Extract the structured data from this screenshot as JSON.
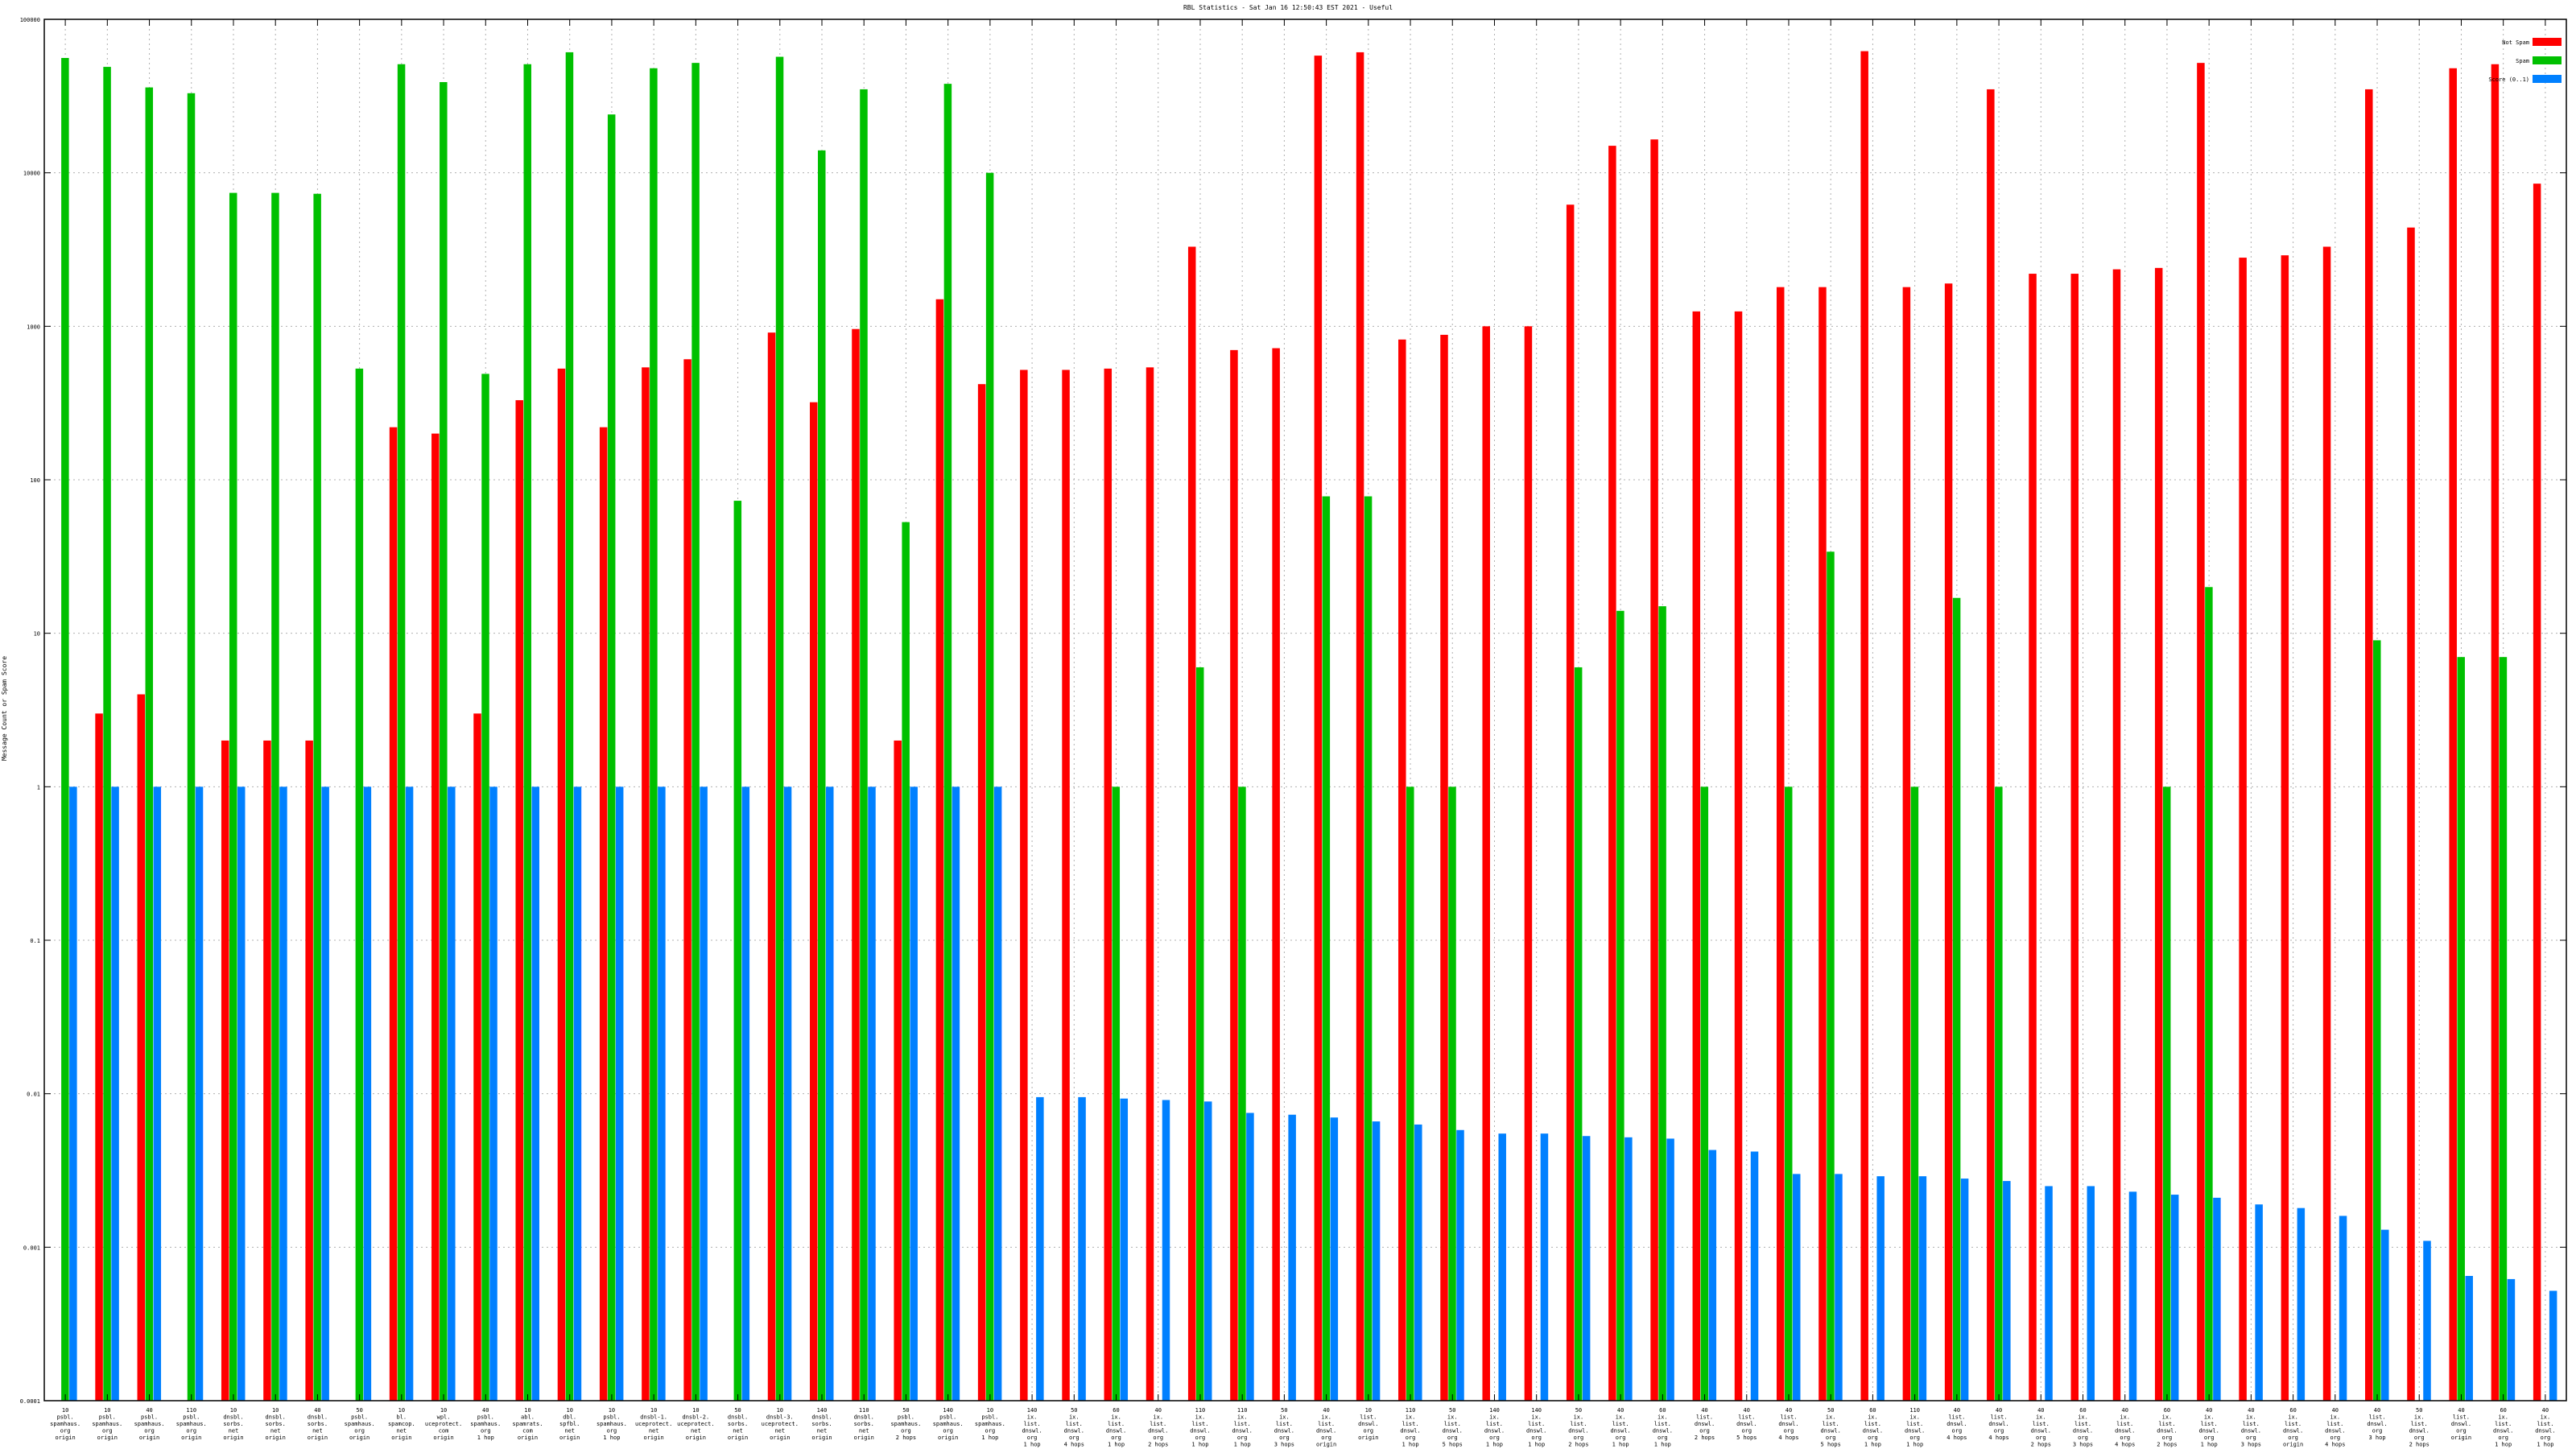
{
  "chart_data": {
    "type": "bar",
    "title": "RBL Statistics - Sat Jan 16 12:50:43 EST 2021 - Useful",
    "xlabel": "",
    "ylabel": "Message Count or Spam Score",
    "yscale": "log",
    "ylim": [
      0.0001,
      100000
    ],
    "yticks": [
      100000,
      10000,
      1000,
      100,
      10,
      1,
      0.1,
      0.01,
      0.001,
      0.0001
    ],
    "ytick_labels": [
      "100000",
      "10000",
      "1000",
      "100",
      "10",
      "1",
      "0.1",
      "0.01",
      "0.001",
      "0.0001"
    ],
    "grid": true,
    "legend_position": "top-right",
    "categories": [
      "10\npsbl.\nspamhaus.\norg\norigin",
      "10\npsbl.\nspamhaus.\norg\norigin",
      "40\npsbl.\nspamhaus.\norg\norigin",
      "110\npsbl.\nspamhaus.\norg\norigin",
      "10\ndnsbl.\nsorbs.\nnet\norigin",
      "10\ndnsbl.\nsorbs.\nnet\norigin",
      "40\ndnsbl.\nsorbs.\nnet\norigin",
      "50\npsbl.\nspamhaus.\norg\norigin",
      "10\nbl.\nspamcop.\nnet\norigin",
      "10\nwpl.\nuceprotect.\ncom\norigin",
      "40\npsbl.\nspamhaus.\norg\n1 hop",
      "10\nabl.\nspamrats.\ncom\norigin",
      "10\ndbl.\nspfbl.\nnet\norigin",
      "10\npsbl.\nspamhaus.\norg\n1 hop",
      "10\ndnsbl-1.\nuceprotect.\nnet\norigin",
      "10\ndnsbl-2.\nuceprotect.\nnet\norigin",
      "50\ndnsbl.\nsorbs.\nnet\norigin",
      "10\ndnsbl-3.\nuceprotect.\nnet\norigin",
      "140\ndnsbl.\nsorbs.\nnet\norigin",
      "110\ndnsbl.\nsorbs.\nnet\norigin",
      "50\npsbl.\nspamhaus.\norg\n2 hops",
      "140\npsbl.\nspamhaus.\norg\norigin",
      "10\npsbl.\nspamhaus.\norg\n1 hop",
      "140\nix.\nlist.\ndnswl.\norg\n1 hop",
      "50\nix.\nlist.\ndnswl.\norg\n4 hops",
      "60\nix.\nlist.\ndnswl.\norg\n1 hop",
      "40\nix.\nlist.\ndnswl.\norg\n2 hops",
      "110\nix.\nlist.\ndnswl.\norg\n1 hop",
      "110\nix.\nlist.\ndnswl.\norg\n1 hop",
      "50\nix.\nlist.\ndnswl.\norg\n3 hops",
      "40\nix.\nlist.\ndnswl.\norg\norigin",
      "10\nlist.\ndnswl.\norg\norigin",
      "110\nix.\nlist.\ndnswl.\norg\n1 hop",
      "50\nix.\nlist.\ndnswl.\norg\n5 hops",
      "140\nix.\nlist.\ndnswl.\norg\n1 hop",
      "140\nix.\nlist.\ndnswl.\norg\n1 hop",
      "50\nix.\nlist.\ndnswl.\norg\n2 hops",
      "40\nix.\nlist.\ndnswl.\norg\n1 hop",
      "60\nix.\nlist.\ndnswl.\norg\n1 hop",
      "40\nlist.\ndnswl.\norg\n2 hops",
      "40\nlist.\ndnswl.\norg\n5 hops",
      "40\nlist.\ndnswl.\norg\n4 hops",
      "50\nix.\nlist.\ndnswl.\norg\n5 hops",
      "60\nix.\nlist.\ndnswl.\norg\n1 hop",
      "110\nix.\nlist.\ndnswl.\norg\n1 hop",
      "40\nlist.\ndnswl.\norg\n4 hops",
      "40\nlist.\ndnswl.\norg\n4 hops",
      "40\nix.\nlist.\ndnswl.\norg\n2 hops",
      "60\nix.\nlist.\ndnswl.\norg\n3 hops",
      "40\nix.\nlist.\ndnswl.\norg\n4 hops",
      "60\nix.\nlist.\ndnswl.\norg\n2 hops",
      "40\nix.\nlist.\ndnswl.\norg\n1 hop",
      "40\nix.\nlist.\ndnswl.\norg\n3 hops",
      "60\nix.\nlist.\ndnswl.\norg\norigin",
      "40\nix.\nlist.\ndnswl.\norg\n4 hops",
      "40\nlist.\ndnswl.\norg\n3 hop",
      "50\nix.\nlist.\ndnswl.\norg\n2 hops",
      "40\nlist.\ndnswl.\norg\norigin",
      "60\nix.\nlist.\ndnswl.\norg\n1 hop",
      "40\nix.\nlist.\ndnswl.\norg\n1 hop"
    ],
    "series": [
      {
        "name": "Not Spam",
        "color": "#ff0000",
        "values": [
          null,
          3,
          4,
          null,
          2,
          2,
          2,
          null,
          220,
          200,
          3,
          330,
          530,
          220,
          540,
          610,
          null,
          910,
          320,
          960,
          2,
          1500,
          420,
          520,
          520,
          530,
          540,
          3300,
          700,
          720,
          58000,
          61000,
          820,
          880,
          1000,
          1000,
          6200,
          15000,
          16500,
          1250,
          1250,
          1800,
          1800,
          62000,
          1800,
          1900,
          35000,
          2200,
          2200,
          2350,
          2400,
          52000,
          2800,
          2900,
          3300,
          35000,
          4400,
          48000,
          51000,
          8500
        ]
      },
      {
        "name": "Spam",
        "color": "#00c000",
        "values": [
          56000,
          49000,
          36000,
          33000,
          7400,
          7400,
          7300,
          530,
          51000,
          39000,
          490,
          51000,
          61000,
          24000,
          48000,
          52000,
          73,
          57000,
          14000,
          35000,
          53,
          38000,
          10000,
          null,
          null,
          1,
          null,
          6,
          1,
          null,
          78,
          78,
          1,
          1,
          null,
          null,
          6,
          14,
          15,
          1,
          null,
          1,
          34,
          null,
          1,
          17,
          1,
          null,
          null,
          null,
          1,
          20,
          null,
          null,
          null,
          9,
          null,
          7,
          7,
          null
        ]
      },
      {
        "name": "Score (0..1)",
        "color": "#0080ff",
        "values": [
          1,
          1,
          1,
          1,
          1,
          1,
          1,
          1,
          1,
          1,
          1,
          1,
          1,
          1,
          1,
          1,
          1,
          1,
          1,
          1,
          1,
          1,
          1,
          0.0095,
          0.0095,
          0.0093,
          0.0091,
          0.0089,
          0.0075,
          0.0073,
          0.007,
          0.0066,
          0.0063,
          0.0058,
          0.0055,
          0.0055,
          0.0053,
          0.0052,
          0.0051,
          0.0043,
          0.0042,
          0.003,
          0.003,
          0.0029,
          0.0029,
          0.0028,
          0.0027,
          0.0025,
          0.0025,
          0.0023,
          0.0022,
          0.0021,
          0.0019,
          0.0018,
          0.0016,
          0.0013,
          0.0011,
          0.00065,
          0.00062,
          0.00052
        ]
      }
    ]
  }
}
